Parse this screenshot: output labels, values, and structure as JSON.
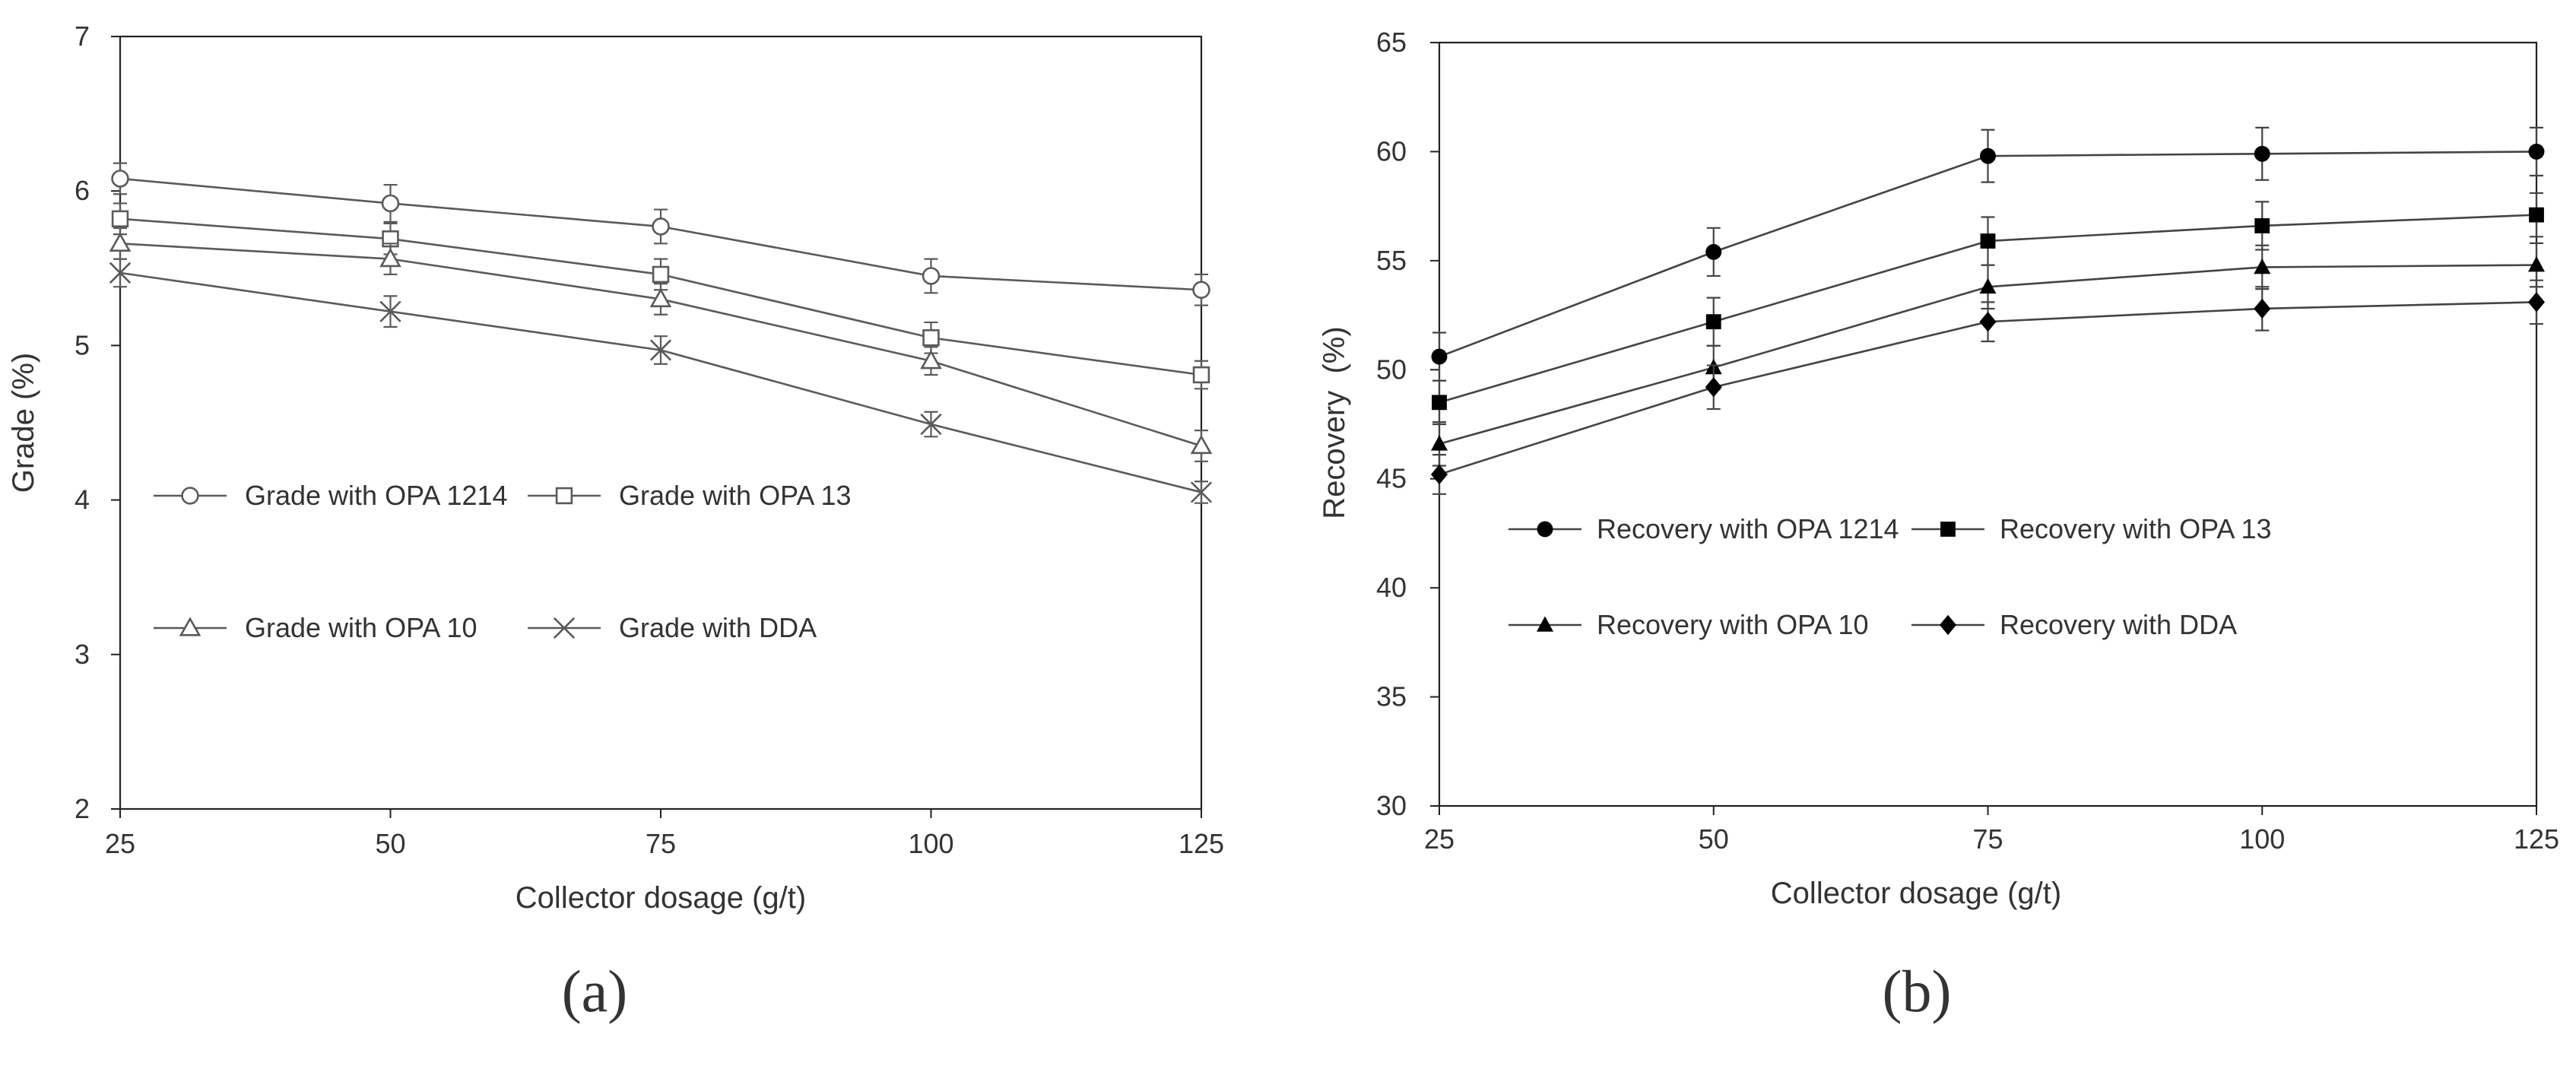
{
  "chart_data": [
    {
      "type": "line",
      "panel_label": "(a)",
      "xlabel": "Collector dosage (g/t)",
      "ylabel": "Grade (%)",
      "xlim": [
        25,
        125
      ],
      "ylim": [
        2,
        7
      ],
      "x": [
        25,
        50,
        75,
        100,
        125
      ],
      "x_tick_labels": [
        "25",
        "50",
        "75",
        "100",
        "125"
      ],
      "y_ticks": [
        2,
        3,
        4,
        5,
        6,
        7
      ],
      "y_tick_labels": [
        "2",
        "3",
        "4",
        "5",
        "6",
        "7"
      ],
      "grid": false,
      "legend_position": "inside-left",
      "series": [
        {
          "name": "Grade with OPA 1214",
          "marker": "circle-open",
          "values": [
            6.08,
            5.92,
            5.77,
            5.45,
            5.36
          ],
          "errors": [
            0.1,
            0.12,
            0.11,
            0.11,
            0.1
          ]
        },
        {
          "name": "Grade with OPA 13",
          "marker": "square-open",
          "values": [
            5.82,
            5.69,
            5.46,
            5.05,
            4.81
          ],
          "errors": [
            0.1,
            0.1,
            0.1,
            0.1,
            0.09
          ]
        },
        {
          "name": "Grade with OPA 10",
          "marker": "triangle-open",
          "values": [
            5.66,
            5.56,
            5.3,
            4.9,
            4.35
          ],
          "errors": [
            0.1,
            0.1,
            0.1,
            0.09,
            0.1
          ]
        },
        {
          "name": "Grade with DDA",
          "marker": "x",
          "values": [
            5.47,
            5.22,
            4.97,
            4.49,
            4.05
          ],
          "errors": [
            0.09,
            0.1,
            0.09,
            0.08,
            0.07
          ]
        }
      ]
    },
    {
      "type": "line",
      "panel_label": "(b)",
      "xlabel": "Collector dosage (g/t)",
      "ylabel": "Recovery  (%)",
      "xlim": [
        25,
        125
      ],
      "ylim": [
        30,
        65
      ],
      "x": [
        25,
        50,
        75,
        100,
        125
      ],
      "x_tick_labels": [
        "25",
        "50",
        "75",
        "100",
        "125"
      ],
      "y_ticks": [
        30,
        35,
        40,
        45,
        50,
        55,
        60,
        65
      ],
      "y_tick_labels": [
        "30",
        "35",
        "40",
        "45",
        "50",
        "55",
        "60",
        "65"
      ],
      "grid": false,
      "legend_position": "inside-left",
      "series": [
        {
          "name": "Recovery with OPA 1214",
          "marker": "circle-filled",
          "values": [
            50.6,
            55.4,
            59.8,
            59.9,
            60.0
          ],
          "errors": [
            1.1,
            1.1,
            1.2,
            1.2,
            1.1
          ]
        },
        {
          "name": "Recovery with OPA 13",
          "marker": "square-filled",
          "values": [
            48.5,
            52.2,
            55.9,
            56.6,
            57.1
          ],
          "errors": [
            1.0,
            1.1,
            1.1,
            1.1,
            1.0
          ]
        },
        {
          "name": "Recovery with OPA 10",
          "marker": "triangle-filled",
          "values": [
            46.6,
            50.1,
            53.8,
            54.7,
            54.8
          ],
          "errors": [
            1.0,
            1.0,
            1.0,
            1.0,
            1.0
          ]
        },
        {
          "name": "Recovery with DDA",
          "marker": "diamond-filled",
          "values": [
            45.2,
            49.2,
            52.2,
            52.8,
            53.1
          ],
          "errors": [
            0.9,
            1.0,
            0.9,
            1.0,
            1.0
          ]
        }
      ]
    }
  ],
  "colors": {
    "axis": "#222222",
    "line_a": "#5a5a5a",
    "line_b": "#444444",
    "marker_filled": "#000000",
    "text": "#333333",
    "background": "#ffffff"
  }
}
